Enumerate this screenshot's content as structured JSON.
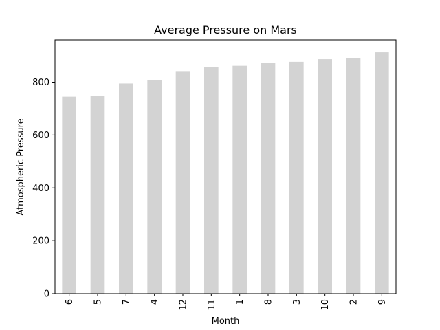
{
  "chart_data": {
    "type": "bar",
    "title": "Average Pressure on Mars",
    "xlabel": "Month",
    "ylabel": "Atmospheric Pressure",
    "categories": [
      "6",
      "5",
      "7",
      "4",
      "12",
      "11",
      "1",
      "8",
      "3",
      "10",
      "2",
      "9"
    ],
    "values": [
      745,
      748,
      795,
      807,
      842,
      857,
      862,
      874,
      877,
      887,
      890,
      913
    ],
    "ylim": [
      0,
      960
    ],
    "yticks": [
      0,
      200,
      400,
      600,
      800
    ],
    "grid": false,
    "legend": "none",
    "bar_color": "#d3d3d3",
    "axis_color": "#000000"
  }
}
